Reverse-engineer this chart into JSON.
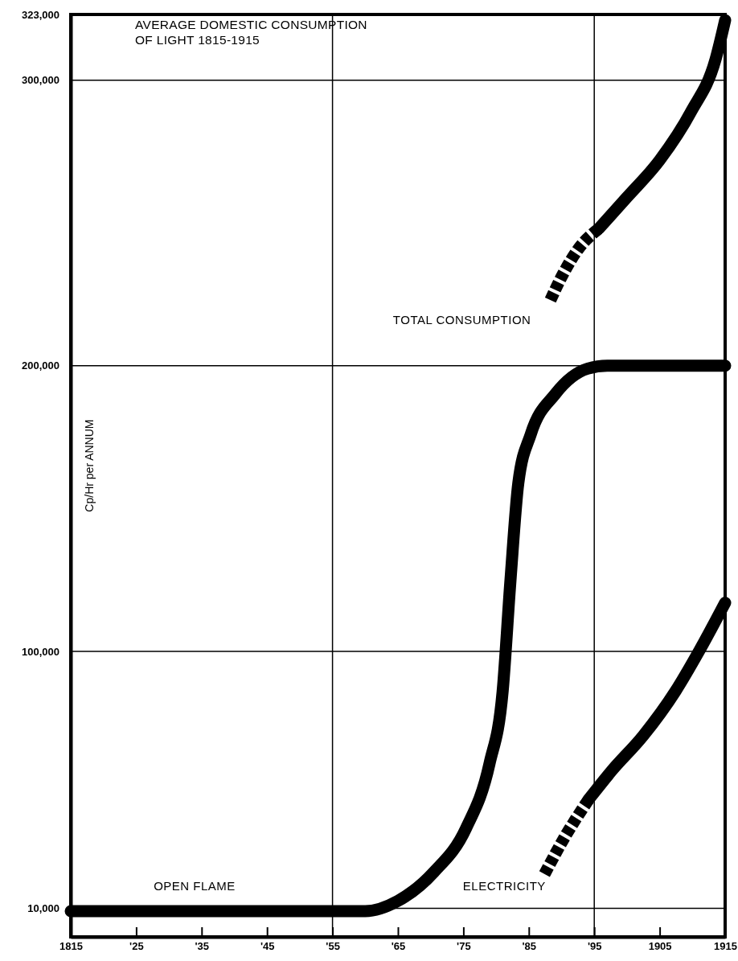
{
  "chart_data": {
    "type": "line",
    "title": "AVERAGE DOMESTIC CONSUMPTION\nOF LIGHT  1815-1915",
    "ylabel": "Cp/Hr per ANNUM",
    "xlim": [
      1815,
      1915
    ],
    "xticks": [
      {
        "value": 1815,
        "label": "1815"
      },
      {
        "value": 1825,
        "label": "'25"
      },
      {
        "value": 1835,
        "label": "'35"
      },
      {
        "value": 1845,
        "label": "'45"
      },
      {
        "value": 1855,
        "label": "'55"
      },
      {
        "value": 1865,
        "label": "'65"
      },
      {
        "value": 1875,
        "label": "'75"
      },
      {
        "value": 1885,
        "label": "'85"
      },
      {
        "value": 1895,
        "label": "'95"
      },
      {
        "value": 1905,
        "label": "1905"
      },
      {
        "value": 1915,
        "label": "1915"
      }
    ],
    "ylim": [
      0,
      323000
    ],
    "yticks": [
      {
        "value": 10000,
        "label": "10,000"
      },
      {
        "value": 100000,
        "label": "100,000"
      },
      {
        "value": 200000,
        "label": "200,000"
      },
      {
        "value": 300000,
        "label": "300,000"
      },
      {
        "value": 323000,
        "label": "323,000"
      }
    ],
    "grid": false,
    "line_style": "solid",
    "marker": "none",
    "series": [
      {
        "name": "OPEN FLAME",
        "color": "#000000",
        "x": [
          1815,
          1860,
          1865,
          1870.5,
          1875.4,
          1879,
          1881,
          1882.2,
          1883.4,
          1885.3,
          1889,
          1894,
          1897,
          1915
        ],
        "values": [
          9000,
          9000,
          12600,
          22700,
          38000,
          60700,
          86000,
          125000,
          159000,
          176000,
          190000,
          199000,
          200000,
          200000
        ]
      },
      {
        "name": "TOTAL CONSUMPTION",
        "color": "#000000",
        "line_style": "dashed",
        "x": [
          1888.3,
          1890.2,
          1892.6,
          1895.7
        ],
        "values": [
          223000,
          232000,
          241000,
          248000
        ]
      },
      {
        "color": "#000000",
        "x": [
          1895.7,
          1900,
          1905,
          1909.8,
          1913.5,
          1915
        ],
        "values": [
          248000,
          259000,
          272000,
          289000,
          307000,
          321000
        ]
      },
      {
        "name": "ELECTRICITY",
        "color": "#000000",
        "line_style": "dashed",
        "x": [
          1887.4,
          1890.5,
          1894.1
        ],
        "values": [
          22000,
          35000,
          48000
        ]
      },
      {
        "color": "#000000",
        "x": [
          1894.1,
          1897.6,
          1902.5,
          1907.4,
          1911,
          1915
        ],
        "values": [
          48000,
          58000,
          70500,
          86000,
          100000,
          117000
        ]
      }
    ],
    "ref_lines": [
      {
        "axis": "y",
        "value": 10000
      },
      {
        "axis": "y",
        "value": 100000
      },
      {
        "axis": "y",
        "value": 200000
      },
      {
        "axis": "y",
        "value": 300000
      },
      {
        "axis": "x",
        "value": 1855
      },
      {
        "axis": "x",
        "value": 1895
      }
    ]
  }
}
